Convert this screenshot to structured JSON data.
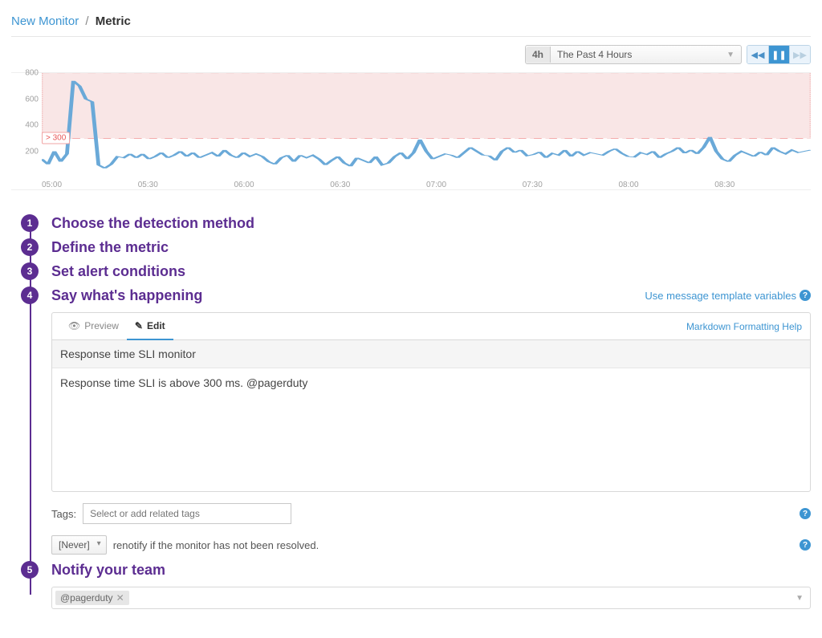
{
  "breadcrumb": {
    "link": "New Monitor",
    "current": "Metric"
  },
  "time_picker": {
    "badge": "4h",
    "label": "The Past 4 Hours"
  },
  "playback": {
    "active_index": 1
  },
  "chart": {
    "type": "line",
    "ylim": [
      0,
      800
    ],
    "yticks": [
      200,
      400,
      600,
      800
    ],
    "xticks": [
      "05:00",
      "05:30",
      "06:00",
      "06:30",
      "07:00",
      "07:30",
      "08:00",
      "08:30"
    ],
    "threshold": 300,
    "threshold_label": "> 300",
    "alert_fill": "#f9e6e6",
    "alert_border": "#f2bcbc",
    "threshold_color": "#e85757",
    "line_color": "#6aa9d8",
    "background": "#ffffff",
    "series": [
      140,
      100,
      200,
      120,
      180,
      740,
      700,
      600,
      580,
      95,
      70,
      100,
      160,
      150,
      180,
      150,
      180,
      140,
      160,
      190,
      150,
      170,
      200,
      160,
      190,
      150,
      170,
      190,
      160,
      210,
      170,
      150,
      190,
      160,
      180,
      160,
      120,
      100,
      150,
      170,
      120,
      170,
      150,
      170,
      140,
      95,
      130,
      160,
      110,
      85,
      150,
      130,
      110,
      160,
      95,
      110,
      160,
      190,
      140,
      190,
      290,
      200,
      140,
      160,
      180,
      170,
      150,
      190,
      230,
      200,
      170,
      165,
      130,
      200,
      230,
      190,
      210,
      165,
      175,
      195,
      150,
      185,
      170,
      210,
      160,
      200,
      170,
      190,
      180,
      170,
      200,
      220,
      185,
      160,
      155,
      190,
      175,
      200,
      150,
      180,
      200,
      230,
      185,
      210,
      180,
      230,
      310,
      200,
      140,
      120,
      170,
      200,
      180,
      160,
      195,
      170,
      230,
      200,
      180,
      210,
      190,
      200,
      210
    ]
  },
  "steps": [
    {
      "n": "1",
      "title": "Choose the detection method"
    },
    {
      "n": "2",
      "title": "Define the metric"
    },
    {
      "n": "3",
      "title": "Set alert conditions"
    },
    {
      "n": "4",
      "title": "Say what's happening"
    },
    {
      "n": "5",
      "title": "Notify your team"
    }
  ],
  "template_vars_link": "Use message template variables",
  "tabs": {
    "preview": "Preview",
    "edit": "Edit"
  },
  "md_help": "Markdown Formatting Help",
  "message_title": "Response time SLI monitor",
  "message_body": "Response time SLI is above 300 ms. @pagerduty",
  "tags_label": "Tags:",
  "tags_placeholder": "Select or add related tags",
  "renotify": {
    "select": "[Never]",
    "text": "renotify if the monitor has not been resolved."
  },
  "notify": {
    "recipient": "@pagerduty"
  }
}
